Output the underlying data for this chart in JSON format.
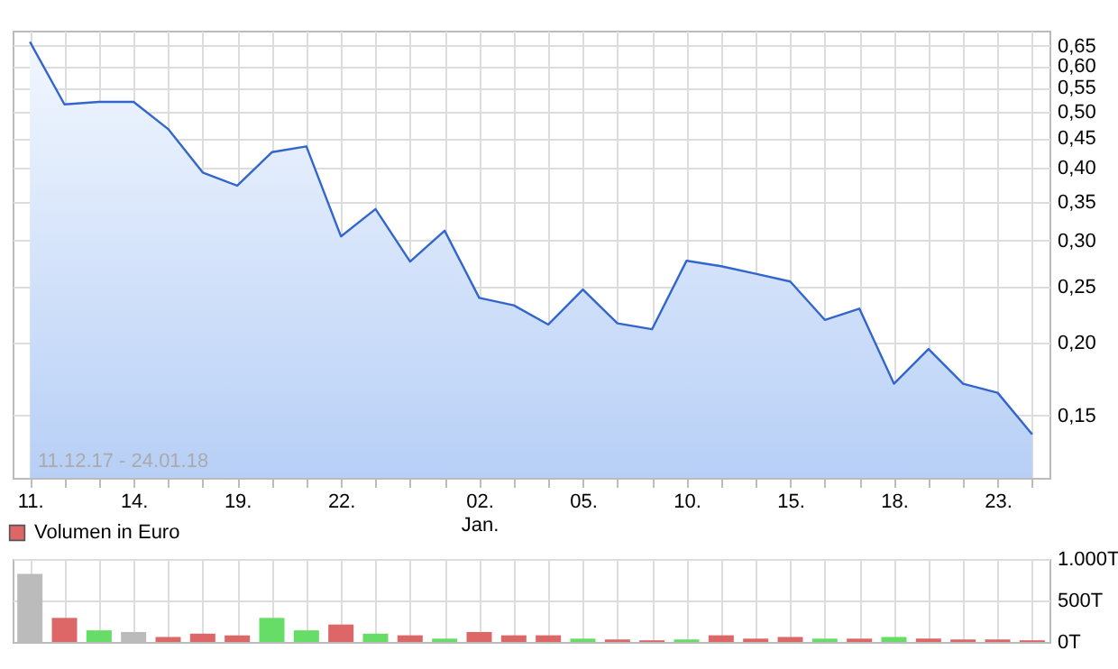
{
  "chart_data": [
    {
      "type": "area",
      "categories": [
        "11.",
        null,
        null,
        "14.",
        null,
        null,
        "19.",
        null,
        null,
        "22.",
        null,
        null,
        null,
        "02.\nJan.",
        null,
        null,
        "05.",
        null,
        null,
        "10.",
        null,
        null,
        "15.",
        null,
        null,
        "18.",
        null,
        null,
        "23.",
        null
      ],
      "series": [
        {
          "color": "#3366cc",
          "values": [
            0.66,
            0.515,
            0.52,
            0.52,
            0.467,
            0.393,
            0.373,
            0.426,
            0.436,
            0.305,
            0.34,
            0.276,
            0.312,
            0.239,
            0.232,
            0.215,
            0.247,
            0.216,
            0.211,
            0.277,
            0.271,
            0.263,
            0.255,
            0.219,
            0.229,
            0.17,
            0.195,
            0.17,
            0.164,
            0.139
          ]
        }
      ],
      "log": "y",
      "ylim": [
        0.117,
        0.69
      ],
      "yticks": [
        {
          "value": 0.15,
          "label": "0,15"
        },
        {
          "value": 0.2,
          "label": "0,20"
        },
        {
          "value": 0.25,
          "label": "0,25"
        },
        {
          "value": 0.3,
          "label": "0,30"
        },
        {
          "value": 0.35,
          "label": "0,35"
        },
        {
          "value": 0.4,
          "label": "0,40"
        },
        {
          "value": 0.45,
          "label": "0,45"
        },
        {
          "value": 0.5,
          "label": "0,50"
        },
        {
          "value": 0.55,
          "label": "0,55"
        },
        {
          "value": 0.6,
          "label": "0,60"
        },
        {
          "value": 0.65,
          "label": "0,65"
        }
      ],
      "grid": true,
      "annotations": [
        "11.12.17 - 24.01.18"
      ]
    },
    {
      "type": "bar",
      "categories": [
        null,
        null,
        null,
        null,
        null,
        null,
        null,
        null,
        null,
        null,
        null,
        null,
        null,
        null,
        null,
        null,
        null,
        null,
        null,
        null,
        null,
        null,
        null,
        null,
        null,
        null,
        null,
        null,
        null,
        null
      ],
      "series": [
        {
          "name": "Volumen in Euro",
          "color": "#dd6666",
          "colors": [
            "#bbbbbb",
            "#dd6666",
            "#66dd66",
            "#bbbbbb",
            "#dd6666",
            "#dd6666",
            "#dd6666",
            "#66dd66",
            "#66dd66",
            "#dd6666",
            "#66dd66",
            "#dd6666",
            "#66dd66",
            "#dd6666",
            "#dd6666",
            "#dd6666",
            "#66dd66",
            "#dd6666",
            "#dd6666",
            "#66dd66",
            "#dd6666",
            "#dd6666",
            "#dd6666",
            "#66dd66",
            "#dd6666",
            "#66dd66",
            "#dd6666",
            "#dd6666",
            "#dd6666",
            "#dd6666"
          ],
          "values": [
            820,
            290,
            140,
            120,
            60,
            100,
            80,
            290,
            140,
            210,
            100,
            80,
            40,
            120,
            80,
            80,
            40,
            30,
            20,
            30,
            80,
            40,
            60,
            40,
            40,
            60,
            40,
            30,
            30,
            20
          ]
        }
      ],
      "ylim": [
        0,
        1000
      ],
      "yticks": [
        {
          "value": 0,
          "label": "0T"
        },
        {
          "value": 500,
          "label": "500T"
        },
        {
          "value": 1000,
          "label": "1.000T"
        }
      ],
      "grid": true,
      "legend": "top left",
      "tick_labels": "y"
    }
  ]
}
